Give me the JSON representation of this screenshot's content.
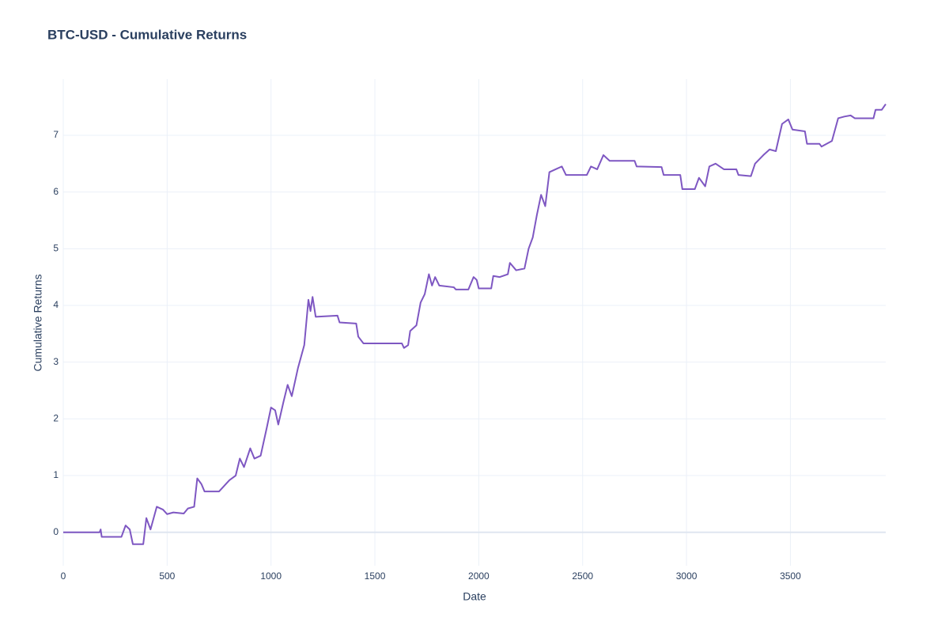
{
  "chart_data": {
    "type": "line",
    "title": "BTC-USD - Cumulative Returns",
    "x_label": "Date",
    "y_label": "Cumulative Returns",
    "x": [
      0,
      175,
      180,
      185,
      280,
      300,
      320,
      335,
      385,
      400,
      420,
      450,
      480,
      500,
      530,
      580,
      600,
      630,
      645,
      665,
      680,
      750,
      800,
      830,
      850,
      870,
      900,
      920,
      950,
      980,
      1000,
      1020,
      1035,
      1060,
      1080,
      1100,
      1130,
      1160,
      1180,
      1190,
      1200,
      1215,
      1320,
      1330,
      1410,
      1420,
      1445,
      1630,
      1640,
      1660,
      1670,
      1700,
      1720,
      1740,
      1760,
      1775,
      1790,
      1810,
      1880,
      1890,
      1950,
      1975,
      1990,
      2000,
      2060,
      2070,
      2100,
      2140,
      2150,
      2180,
      2220,
      2240,
      2260,
      2280,
      2300,
      2320,
      2340,
      2370,
      2400,
      2420,
      2500,
      2520,
      2540,
      2570,
      2600,
      2630,
      2750,
      2760,
      2880,
      2890,
      2970,
      2980,
      3040,
      3060,
      3090,
      3110,
      3140,
      3180,
      3240,
      3250,
      3310,
      3330,
      3370,
      3400,
      3430,
      3460,
      3490,
      3510,
      3570,
      3580,
      3640,
      3650,
      3700,
      3730,
      3760,
      3790,
      3810,
      3900,
      3910,
      3940,
      3959
    ],
    "series": [
      {
        "name": "Cumulative Returns",
        "color": "#7e57c2",
        "values": [
          0,
          0,
          0.05,
          -0.08,
          -0.08,
          0.12,
          0.05,
          -0.21,
          -0.21,
          0.25,
          0.05,
          0.45,
          0.4,
          0.32,
          0.35,
          0.33,
          0.42,
          0.45,
          0.95,
          0.85,
          0.72,
          0.72,
          0.92,
          1.0,
          1.3,
          1.15,
          1.48,
          1.3,
          1.35,
          1.85,
          2.2,
          2.15,
          1.9,
          2.3,
          2.6,
          2.4,
          2.9,
          3.3,
          4.1,
          3.9,
          4.15,
          3.8,
          3.82,
          3.7,
          3.68,
          3.45,
          3.33,
          3.33,
          3.25,
          3.3,
          3.55,
          3.65,
          4.05,
          4.2,
          4.55,
          4.35,
          4.5,
          4.35,
          4.32,
          4.28,
          4.28,
          4.5,
          4.45,
          4.3,
          4.3,
          4.52,
          4.5,
          4.55,
          4.75,
          4.62,
          4.65,
          5.0,
          5.2,
          5.6,
          5.95,
          5.75,
          6.35,
          6.4,
          6.45,
          6.3,
          6.3,
          6.3,
          6.45,
          6.4,
          6.65,
          6.55,
          6.55,
          6.45,
          6.44,
          6.3,
          6.3,
          6.05,
          6.05,
          6.25,
          6.1,
          6.45,
          6.5,
          6.4,
          6.4,
          6.3,
          6.28,
          6.5,
          6.65,
          6.75,
          6.72,
          7.2,
          7.28,
          7.1,
          7.07,
          6.85,
          6.85,
          6.8,
          6.9,
          7.3,
          7.33,
          7.35,
          7.3,
          7.3,
          7.45,
          7.45,
          7.55
        ]
      }
    ],
    "xlim": [
      0,
      3959
    ],
    "ylim": [
      -0.59,
      7.99
    ],
    "xticks": [
      0,
      500,
      1000,
      1500,
      2000,
      2500,
      3000,
      3500
    ],
    "yticks": [
      0,
      1,
      2,
      3,
      4,
      5,
      6,
      7
    ],
    "grid": true
  }
}
